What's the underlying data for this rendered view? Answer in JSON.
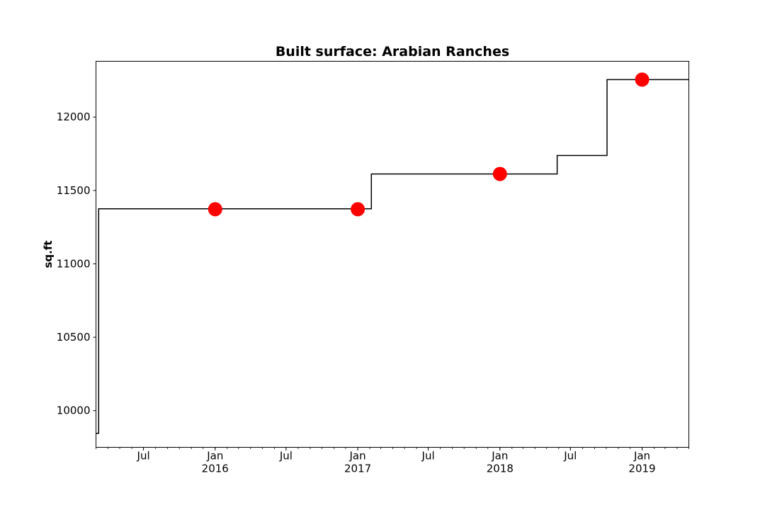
{
  "chart_data": {
    "type": "line",
    "title": "Built surface: Arabian Ranches",
    "xlabel": "",
    "ylabel": "sq.ft",
    "x_range": [
      "2015-03-01",
      "2019-05-01"
    ],
    "ylim": [
      9750,
      12380
    ],
    "y_ticks": [
      10000,
      10500,
      11000,
      11500,
      12000
    ],
    "y_tick_labels": [
      "10000",
      "10500",
      "11000",
      "11500",
      "12000"
    ],
    "x_ticks": [
      {
        "date": "2015-07-01",
        "label": "Jul",
        "year": ""
      },
      {
        "date": "2016-01-01",
        "label": "Jan",
        "year": "2016"
      },
      {
        "date": "2016-07-01",
        "label": "Jul",
        "year": ""
      },
      {
        "date": "2017-01-01",
        "label": "Jan",
        "year": "2017"
      },
      {
        "date": "2017-07-01",
        "label": "Jul",
        "year": ""
      },
      {
        "date": "2018-01-01",
        "label": "Jan",
        "year": "2018"
      },
      {
        "date": "2018-07-01",
        "label": "Jul",
        "year": ""
      },
      {
        "date": "2019-01-01",
        "label": "Jan",
        "year": "2019"
      }
    ],
    "grid": false,
    "series": [
      {
        "style": "step",
        "color": "#000000",
        "points": [
          {
            "x": "2015-03-01",
            "y": 9845
          },
          {
            "x": "2015-03-08",
            "y": 11375
          },
          {
            "x": "2017-02-01",
            "y": 11375
          },
          {
            "x": "2017-02-05",
            "y": 11612
          },
          {
            "x": "2018-05-25",
            "y": 11612
          },
          {
            "x": "2018-05-28",
            "y": 11738
          },
          {
            "x": "2018-10-01",
            "y": 11738
          },
          {
            "x": "2018-10-03",
            "y": 12255
          },
          {
            "x": "2019-05-01",
            "y": 12255
          }
        ]
      },
      {
        "style": "scatter",
        "color": "#ff0000",
        "points": [
          {
            "x": "2016-01-01",
            "y": 11372
          },
          {
            "x": "2017-01-01",
            "y": 11372
          },
          {
            "x": "2018-01-01",
            "y": 11612
          },
          {
            "x": "2019-01-01",
            "y": 12255
          }
        ]
      }
    ]
  }
}
